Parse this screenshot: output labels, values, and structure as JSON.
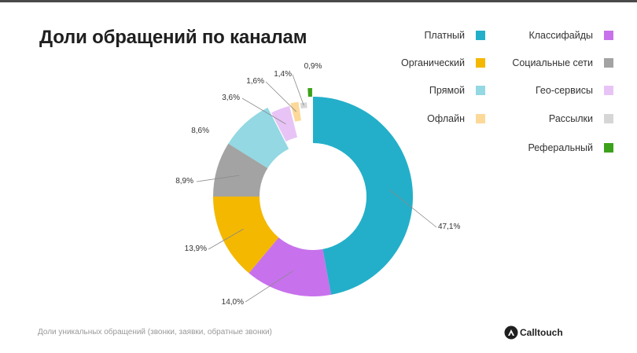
{
  "page": {
    "title": "Доли обращений по каналам",
    "footnote": "Доли уникальных обращений (звонки, заявки, обратные звонки)",
    "brand": "Calltouch"
  },
  "chart_data": {
    "type": "pie",
    "donut": true,
    "title": "Доли обращений по каналам",
    "slices": [
      {
        "label": "Платный",
        "value": 47.1,
        "display": "47,1%",
        "color": "#23afc9"
      },
      {
        "label": "Классифайды",
        "value": 14.0,
        "display": "14,0%",
        "color": "#c772ec"
      },
      {
        "label": "Органический",
        "value": 13.9,
        "display": "13,9%",
        "color": "#f4b800"
      },
      {
        "label": "Социальные сети",
        "value": 8.9,
        "display": "8,9%",
        "color": "#a3a3a3"
      },
      {
        "label": "Прямой",
        "value": 8.6,
        "display": "8,6%",
        "color": "#93d8e3"
      },
      {
        "label": "Гео-сервисы",
        "value": 3.6,
        "display": "3,6%",
        "color": "#e8c4f6"
      },
      {
        "label": "Офлайн",
        "value": 1.6,
        "display": "1,6%",
        "color": "#fcd999"
      },
      {
        "label": "Рассылки",
        "value": 1.4,
        "display": "1,4%",
        "color": "#d6d6d6"
      },
      {
        "label": "Реферальный",
        "value": 0.9,
        "display": "0,9%",
        "color": "#3ca11a"
      }
    ],
    "legend_placement": "right"
  },
  "legend": {
    "col1": [
      {
        "label": "Платный",
        "color": "#23afc9"
      },
      {
        "label": "Органический",
        "color": "#f4b800"
      },
      {
        "label": "Прямой",
        "color": "#93d8e3"
      },
      {
        "label": "Офлайн",
        "color": "#fcd999"
      }
    ],
    "col2": [
      {
        "label": "Классифайды",
        "color": "#c772ec"
      },
      {
        "label": "Социальные сети",
        "color": "#a3a3a3"
      },
      {
        "label": "Гео-сервисы",
        "color": "#e8c4f6"
      },
      {
        "label": "Рассылки",
        "color": "#d6d6d6"
      },
      {
        "label": "Реферальный",
        "color": "#3ca11a"
      }
    ]
  }
}
